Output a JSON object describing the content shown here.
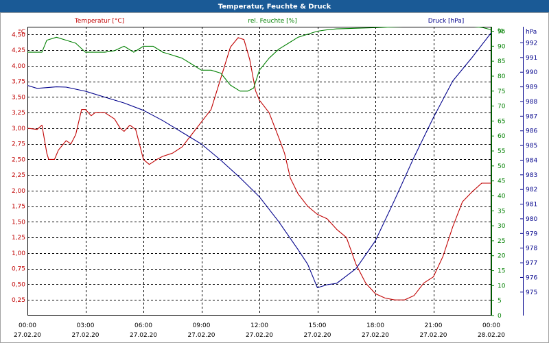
{
  "window": {
    "title": "Temperatur, Feuchte & Druck",
    "title_bar_color": "#1a5a96",
    "title_text_color": "#ffffff"
  },
  "chart_data": {
    "type": "line",
    "title": "Temperatur, Feuchte & Druck",
    "grid": true,
    "grid_style": "dashed",
    "x": {
      "unit": "time",
      "range_hours": [
        0,
        24
      ],
      "tick_hours": [
        0,
        3,
        6,
        9,
        12,
        15,
        18,
        21,
        24
      ],
      "tick_labels_time": [
        "00:00",
        "03:00",
        "06:00",
        "09:00",
        "12:00",
        "15:00",
        "18:00",
        "21:00",
        "00:00"
      ],
      "tick_labels_date": [
        "27.02.20",
        "27.02.20",
        "27.02.20",
        "27.02.20",
        "27.02.20",
        "27.02.20",
        "27.02.20",
        "27.02.20",
        "28.02.20"
      ]
    },
    "axes": {
      "temperature": {
        "side": "left",
        "unit_label": "°C",
        "color": "#c00000",
        "range": [
          0,
          4.625
        ],
        "ticks": [
          0.25,
          0.5,
          0.75,
          1.0,
          1.25,
          1.5,
          1.75,
          2.0,
          2.25,
          2.5,
          2.75,
          3.0,
          3.25,
          3.5,
          3.75,
          4.0,
          4.25,
          4.5
        ],
        "tick_labels": [
          "0,25",
          "0,50",
          "0,75",
          "1,00",
          "1,25",
          "1,50",
          "1,75",
          "2,00",
          "2,25",
          "2,50",
          "2,75",
          "3,00",
          "3,25",
          "3,50",
          "3,75",
          "4,00",
          "4,25",
          "4,50"
        ]
      },
      "humidity": {
        "side": "right-inner",
        "unit_label": "%",
        "color": "#008000",
        "range": [
          0,
          96.5
        ],
        "ticks": [
          0,
          5,
          10,
          15,
          20,
          25,
          30,
          35,
          40,
          45,
          50,
          55,
          60,
          65,
          70,
          75,
          80,
          85,
          90,
          95
        ],
        "tick_labels": [
          "0",
          "5",
          "10",
          "15",
          "20",
          "25",
          "30",
          "35",
          "40",
          "45",
          "50",
          "55",
          "60",
          "65",
          "70",
          "75",
          "80",
          "85",
          "90",
          "95"
        ],
        "top_label": "%"
      },
      "pressure": {
        "side": "right-outer",
        "unit_label": "hPa",
        "color": "#00008b",
        "range": [
          973.4,
          993.1
        ],
        "ticks": [
          975,
          976,
          977,
          978,
          979,
          980,
          981,
          982,
          983,
          984,
          985,
          986,
          987,
          988,
          989,
          990,
          991,
          992
        ],
        "tick_labels": [
          "975",
          "976",
          "977",
          "978",
          "979",
          "980",
          "981",
          "982",
          "983",
          "984",
          "985",
          "986",
          "987",
          "988",
          "989",
          "990",
          "991",
          "992"
        ]
      }
    },
    "series": [
      {
        "name": "Temperatur [°C]",
        "axis": "temperature",
        "color": "#c00000",
        "x_hours": [
          0,
          0.5,
          0.75,
          1.0,
          1.1,
          1.4,
          1.6,
          2.0,
          2.25,
          2.5,
          2.8,
          3.0,
          3.3,
          3.5,
          4.0,
          4.5,
          4.8,
          5.0,
          5.3,
          5.6,
          6.0,
          6.3,
          6.7,
          7.0,
          7.5,
          8.0,
          8.5,
          9.0,
          9.5,
          10.0,
          10.5,
          10.9,
          11.2,
          11.5,
          11.8,
          12.0,
          12.5,
          13.0,
          13.3,
          13.6,
          14.0,
          14.5,
          15.0,
          15.5,
          16.0,
          16.5,
          17.0,
          17.5,
          18.0,
          18.5,
          19.0,
          19.5,
          20.0,
          20.5,
          21.0,
          21.5,
          22.0,
          22.5,
          23.0,
          23.5,
          24.0
        ],
        "values": [
          3.0,
          2.98,
          3.05,
          2.6,
          2.5,
          2.5,
          2.65,
          2.8,
          2.75,
          2.9,
          3.3,
          3.3,
          3.2,
          3.25,
          3.25,
          3.15,
          3.0,
          2.95,
          3.05,
          2.98,
          2.5,
          2.42,
          2.5,
          2.55,
          2.6,
          2.7,
          2.9,
          3.1,
          3.3,
          3.8,
          4.3,
          4.45,
          4.42,
          4.1,
          3.6,
          3.45,
          3.25,
          2.85,
          2.6,
          2.2,
          1.95,
          1.75,
          1.62,
          1.55,
          1.38,
          1.25,
          0.82,
          0.52,
          0.35,
          0.28,
          0.25,
          0.25,
          0.32,
          0.52,
          0.62,
          0.95,
          1.42,
          1.82,
          1.98,
          2.12,
          2.12
        ]
      },
      {
        "name": "rel. Feuchte [%]",
        "axis": "humidity",
        "color": "#008000",
        "x_hours": [
          0,
          0.75,
          1.0,
          1.5,
          2.0,
          2.5,
          3.0,
          3.5,
          4.0,
          4.5,
          5.0,
          5.5,
          6.0,
          6.5,
          7.0,
          7.5,
          8.0,
          8.5,
          9.0,
          9.5,
          10.0,
          10.5,
          11.0,
          11.4,
          11.7,
          12.0,
          12.5,
          13.0,
          13.5,
          14.0,
          14.5,
          15.0,
          15.5,
          16.0,
          17.0,
          18.0,
          19.0,
          20.0,
          21.0,
          22.0,
          23.0,
          23.5,
          24.0
        ],
        "values": [
          88,
          88,
          92,
          93,
          92,
          91,
          88,
          88,
          88,
          88.5,
          90,
          88,
          90,
          90,
          88,
          87,
          86,
          84,
          82,
          82,
          81,
          77,
          75,
          75,
          76,
          82,
          86,
          89,
          91,
          93,
          94,
          95,
          95.5,
          95.8,
          96,
          96.2,
          96.5,
          96.8,
          97,
          97,
          96.7,
          96.3,
          95.5
        ]
      },
      {
        "name": "Druck [hPa]",
        "axis": "pressure",
        "color": "#00008b",
        "x_hours": [
          0,
          0.5,
          1.0,
          1.5,
          2.0,
          3.0,
          4.0,
          5.0,
          6.0,
          7.0,
          8.0,
          9.0,
          10.0,
          11.0,
          12.0,
          13.0,
          14.0,
          14.5,
          15.0,
          15.5,
          16.0,
          17.0,
          18.0,
          19.0,
          20.0,
          21.0,
          22.0,
          23.0,
          24.0
        ],
        "values": [
          989.1,
          988.9,
          988.95,
          989.0,
          988.98,
          988.7,
          988.3,
          987.9,
          987.4,
          986.7,
          985.9,
          985.1,
          984.0,
          982.8,
          981.5,
          979.8,
          977.9,
          976.9,
          975.3,
          975.5,
          975.6,
          976.6,
          978.5,
          981.3,
          984.2,
          986.9,
          989.4,
          991.0,
          992.7
        ]
      }
    ],
    "legend": [
      {
        "label": "Temperatur [°C]",
        "color": "#c00000",
        "placement": "top-left"
      },
      {
        "label": "rel. Feuchte [%]",
        "color": "#008000",
        "placement": "top-center"
      },
      {
        "label": "Druck [hPa]",
        "color": "#00008b",
        "placement": "top-right"
      }
    ]
  }
}
